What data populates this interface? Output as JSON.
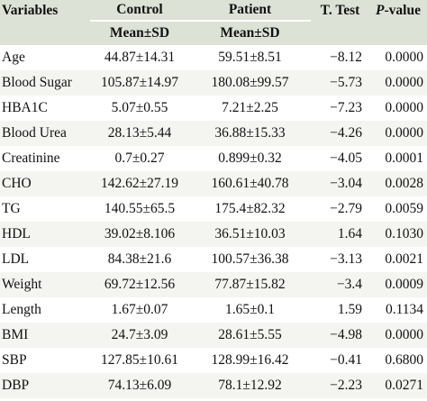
{
  "table": {
    "header": {
      "row1": [
        "Variables",
        "Control",
        "Patient",
        "T. Test",
        "P-value"
      ],
      "row2": [
        "Mean±SD",
        "Mean±SD"
      ]
    },
    "rows": [
      [
        "Age",
        "44.87±14.31",
        "59.51±8.51",
        "−8.12",
        "0.0000"
      ],
      [
        "Blood Sugar",
        "105.87±14.97",
        "180.08±99.57",
        "−5.73",
        "0.0000"
      ],
      [
        "HBA1C",
        "5.07±0.55",
        "7.21±2.25",
        "−7.23",
        "0.0000"
      ],
      [
        "Blood Urea",
        "28.13±5.44",
        "36.88±15.33",
        "−4.26",
        "0.0000"
      ],
      [
        "Creatinine",
        "0.7±0.27",
        "0.899±0.32",
        "−4.05",
        "0.0001"
      ],
      [
        "CHO",
        "142.62±27.19",
        "160.61±40.78",
        "−3.04",
        "0.0028"
      ],
      [
        "TG",
        "140.55±65.5",
        "175.4±82.32",
        "−2.79",
        "0.0059"
      ],
      [
        "HDL",
        "39.02±8.106",
        "36.51±10.03",
        "1.64",
        "0.1030"
      ],
      [
        "LDL",
        "84.38±21.6",
        "100.57±36.38",
        "−3.13",
        "0.0021"
      ],
      [
        "Weight",
        "69.72±12.56",
        "77.87±15.82",
        "−3.4",
        "0.0009"
      ],
      [
        "Length",
        "1.67±0.07",
        "1.65±0.1",
        "1.59",
        "0.1134"
      ],
      [
        "BMI",
        "24.7±3.09",
        "28.61±5.55",
        "−4.98",
        "0.0000"
      ],
      [
        "SBP",
        "127.85±10.61",
        "128.99±16.42",
        "−0.41",
        "0.6800"
      ],
      [
        "DBP",
        "74.13±6.09",
        "78.1±12.92",
        "−2.23",
        "0.0271"
      ]
    ]
  }
}
